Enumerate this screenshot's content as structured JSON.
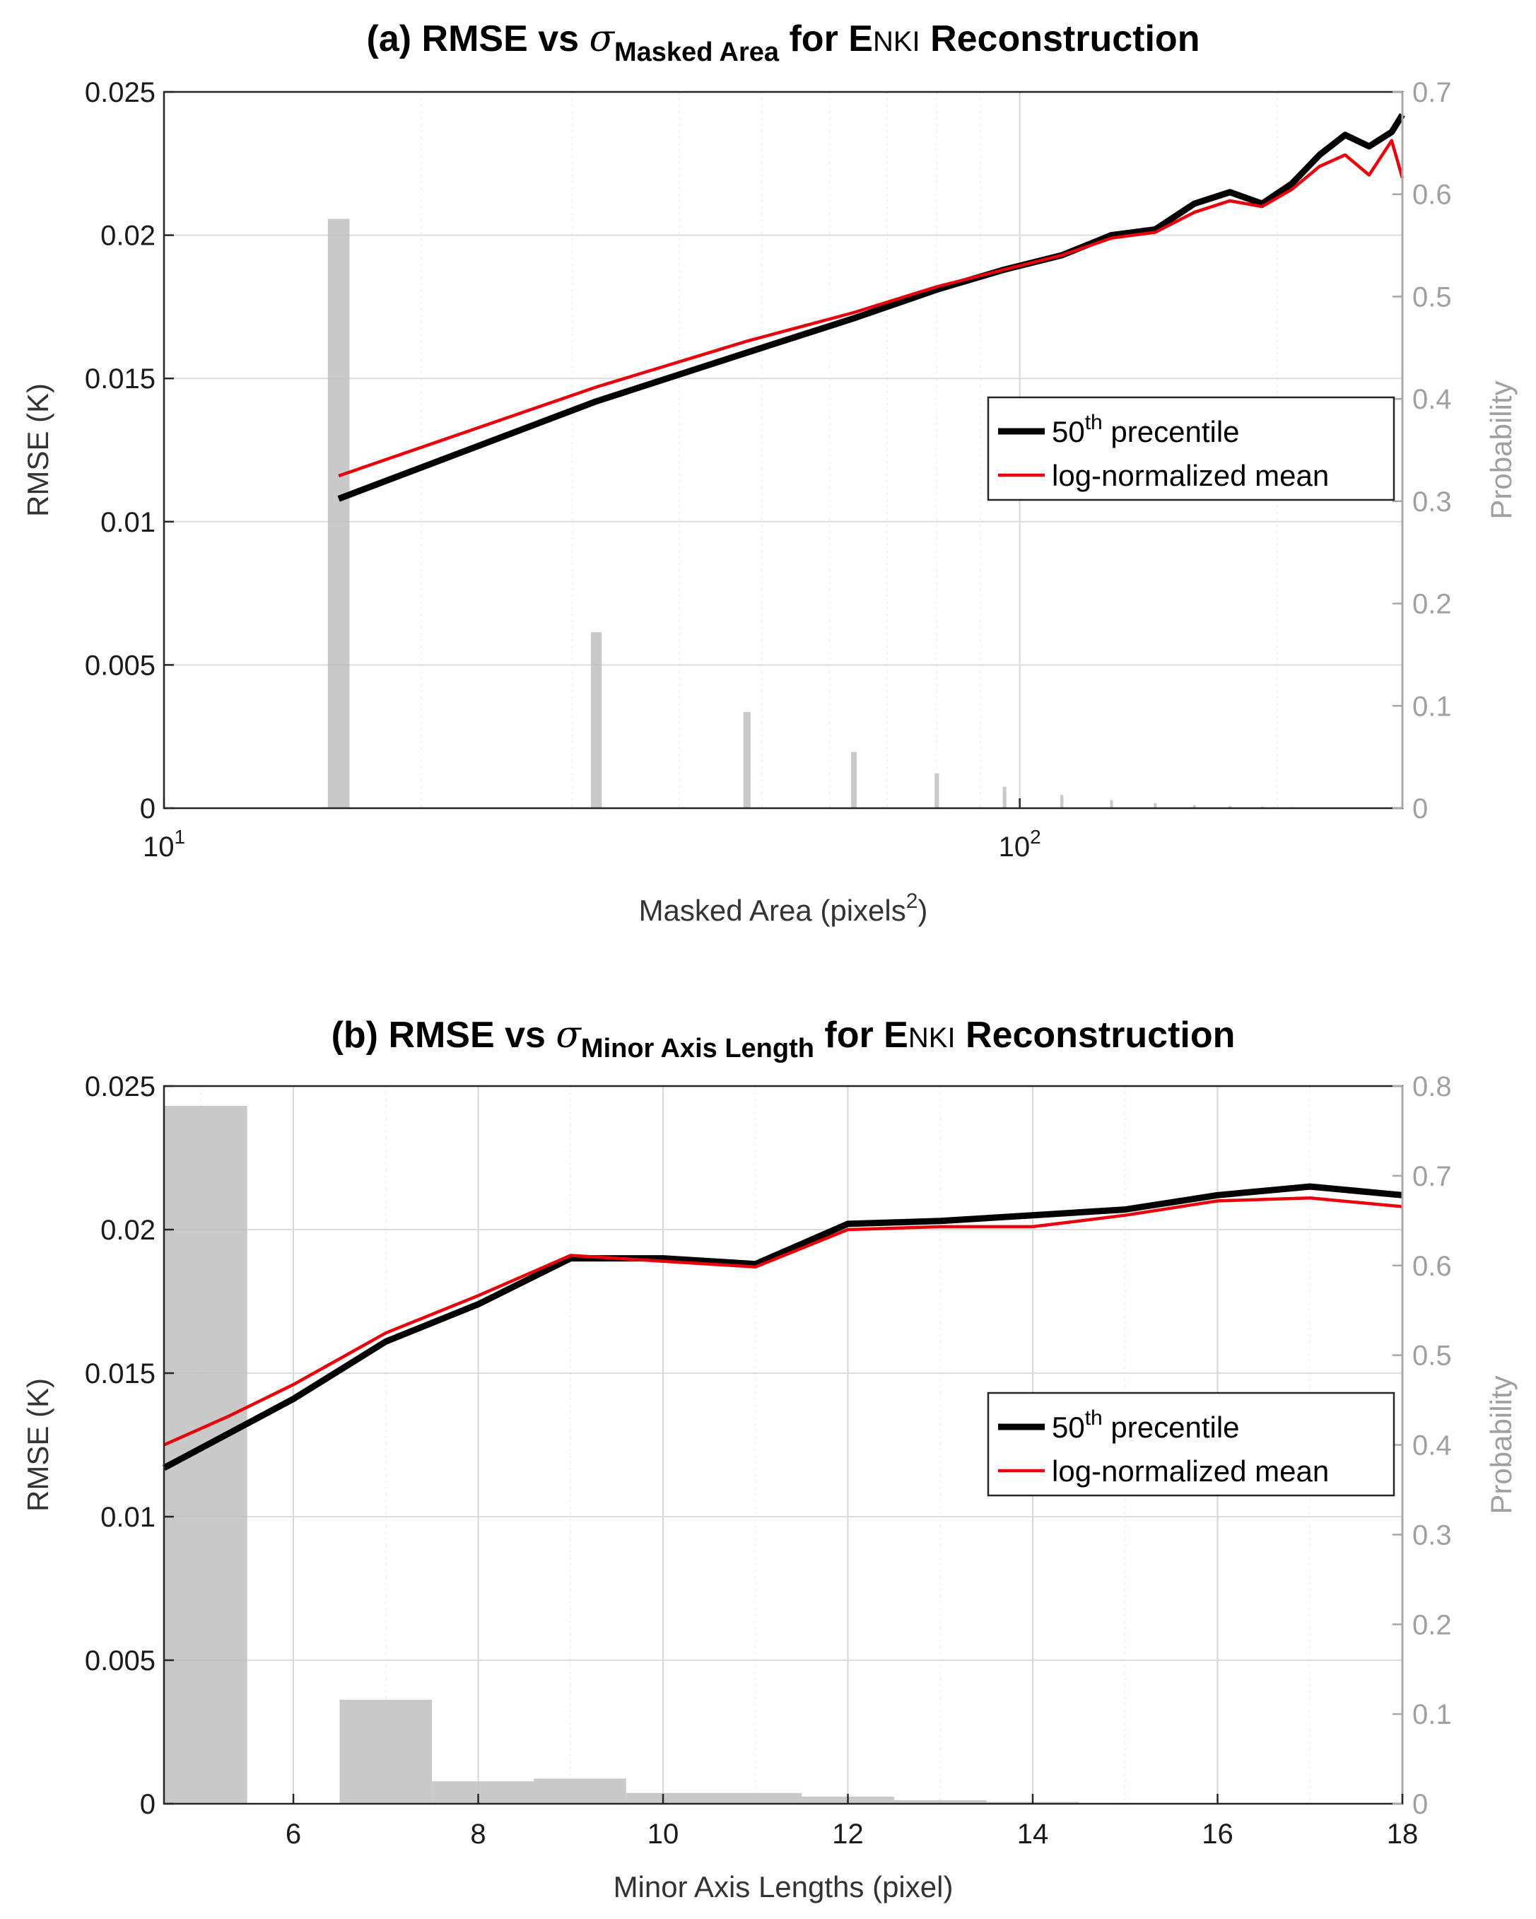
{
  "chart_data": [
    {
      "type": "line",
      "title": "(a) RMSE vs σ Masked Area for ENKI Reconstruction",
      "title_parts": {
        "prefix": "(a) RMSE vs ",
        "sigma": "σ",
        "subscript": "Masked Area",
        "mid": " for E",
        "small": "NKI",
        "suffix": "  Reconstruction"
      },
      "xscale": "log",
      "xlim": [
        10,
        280
      ],
      "xlabel": "Masked Area (pixels",
      "xlabel_sup": "2",
      "xlabel_close": ")",
      "xticks": [
        {
          "value": 10,
          "base": "10",
          "exp": "1"
        },
        {
          "value": 100,
          "base": "10",
          "exp": "2"
        }
      ],
      "ylabel": "RMSE (K)",
      "ylim": [
        0,
        0.025
      ],
      "yticks": [
        {
          "value": 0,
          "label": "0"
        },
        {
          "value": 0.005,
          "label": "0.005"
        },
        {
          "value": 0.01,
          "label": "0.01"
        },
        {
          "value": 0.015,
          "label": "0.015"
        },
        {
          "value": 0.02,
          "label": "0.02"
        },
        {
          "value": 0.025,
          "label": "0.025"
        }
      ],
      "y2label": "Probability",
      "y2lim": [
        0,
        0.7
      ],
      "y2ticks": [
        {
          "value": 0,
          "label": "0"
        },
        {
          "value": 0.1,
          "label": "0.1"
        },
        {
          "value": 0.2,
          "label": "0.2"
        },
        {
          "value": 0.3,
          "label": "0.3"
        },
        {
          "value": 0.4,
          "label": "0.4"
        },
        {
          "value": 0.5,
          "label": "0.5"
        },
        {
          "value": 0.6,
          "label": "0.6"
        },
        {
          "value": 0.7,
          "label": "0.7"
        }
      ],
      "grid": true,
      "legend_position": "center-right",
      "legend": [
        {
          "name": "50",
          "sup": "th",
          "rest": " precentile",
          "color": "#000000"
        },
        {
          "name": "log-normalized mean",
          "color": "#e8000b"
        }
      ],
      "series": [
        {
          "name": "50th precentile",
          "color": "#000000",
          "x": [
            16,
            32,
            48,
            64,
            80,
            96,
            112,
            128,
            144,
            160,
            176,
            192,
            208,
            224,
            240,
            256,
            272,
            280
          ],
          "y": [
            0.0108,
            0.0142,
            0.0159,
            0.0171,
            0.0181,
            0.0188,
            0.0193,
            0.02,
            0.0202,
            0.0211,
            0.0215,
            0.0211,
            0.0218,
            0.0228,
            0.0235,
            0.0231,
            0.0236,
            0.0242
          ]
        },
        {
          "name": "log-normalized mean",
          "color": "#e8000b",
          "x": [
            16,
            32,
            48,
            64,
            80,
            96,
            112,
            128,
            144,
            160,
            176,
            192,
            208,
            224,
            240,
            256,
            272,
            280
          ],
          "y": [
            0.0116,
            0.0147,
            0.0163,
            0.0173,
            0.0182,
            0.0188,
            0.0193,
            0.0199,
            0.0201,
            0.0208,
            0.0212,
            0.021,
            0.0216,
            0.0224,
            0.0228,
            0.0221,
            0.0233,
            0.022
          ]
        }
      ],
      "histogram": {
        "color": "#c0c0c0",
        "bars": [
          {
            "x": 16,
            "p": 0.576
          },
          {
            "x": 32,
            "p": 0.172
          },
          {
            "x": 48,
            "p": 0.094
          },
          {
            "x": 64,
            "p": 0.055
          },
          {
            "x": 80,
            "p": 0.034
          },
          {
            "x": 96,
            "p": 0.021
          },
          {
            "x": 112,
            "p": 0.013
          },
          {
            "x": 128,
            "p": 0.008
          },
          {
            "x": 144,
            "p": 0.005
          },
          {
            "x": 160,
            "p": 0.003
          },
          {
            "x": 176,
            "p": 0.002
          },
          {
            "x": 192,
            "p": 0.0015
          },
          {
            "x": 208,
            "p": 0.001
          }
        ]
      }
    },
    {
      "type": "line",
      "title": "(b) RMSE vs σ Minor Axis Length for ENKI Reconstruction",
      "title_parts": {
        "prefix": "(b) RMSE vs ",
        "sigma": "σ",
        "subscript": "Minor Axis Length",
        "mid": " for E",
        "small": "NKI",
        "suffix": "  Reconstruction"
      },
      "xscale": "linear",
      "xlim": [
        4.6,
        18
      ],
      "xlabel": "Minor Axis Lengths (pixel)",
      "xticks": [
        {
          "value": 6,
          "label": "6"
        },
        {
          "value": 8,
          "label": "8"
        },
        {
          "value": 10,
          "label": "10"
        },
        {
          "value": 12,
          "label": "12"
        },
        {
          "value": 14,
          "label": "14"
        },
        {
          "value": 16,
          "label": "16"
        },
        {
          "value": 18,
          "label": "18"
        }
      ],
      "ylabel": "RMSE (K)",
      "ylim": [
        0,
        0.025
      ],
      "yticks": [
        {
          "value": 0,
          "label": "0"
        },
        {
          "value": 0.005,
          "label": "0.005"
        },
        {
          "value": 0.01,
          "label": "0.01"
        },
        {
          "value": 0.015,
          "label": "0.015"
        },
        {
          "value": 0.02,
          "label": "0.02"
        },
        {
          "value": 0.025,
          "label": "0.025"
        }
      ],
      "y2label": "Probability",
      "y2lim": [
        0,
        0.8
      ],
      "y2ticks": [
        {
          "value": 0,
          "label": "0"
        },
        {
          "value": 0.1,
          "label": "0.1"
        },
        {
          "value": 0.2,
          "label": "0.2"
        },
        {
          "value": 0.3,
          "label": "0.3"
        },
        {
          "value": 0.4,
          "label": "0.4"
        },
        {
          "value": 0.5,
          "label": "0.5"
        },
        {
          "value": 0.6,
          "label": "0.6"
        },
        {
          "value": 0.7,
          "label": "0.7"
        },
        {
          "value": 0.8,
          "label": "0.8"
        }
      ],
      "grid": true,
      "legend_position": "center-right",
      "legend": [
        {
          "name": "50",
          "sup": "th",
          "rest": " precentile",
          "color": "#000000"
        },
        {
          "name": "log-normalized mean",
          "color": "#e8000b"
        }
      ],
      "series": [
        {
          "name": "50th precentile",
          "color": "#000000",
          "x": [
            4.6,
            5.3,
            6,
            7,
            8,
            9,
            10,
            11,
            12,
            13,
            14,
            15,
            16,
            17,
            18
          ],
          "y": [
            0.0117,
            0.0129,
            0.0141,
            0.0161,
            0.0174,
            0.019,
            0.019,
            0.0188,
            0.0202,
            0.0203,
            0.0205,
            0.0207,
            0.0212,
            0.0215,
            0.0212
          ]
        },
        {
          "name": "log-normalized mean",
          "color": "#e8000b",
          "x": [
            4.6,
            5.3,
            6,
            7,
            8,
            9,
            10,
            11,
            12,
            13,
            14,
            15,
            16,
            17,
            18
          ],
          "y": [
            0.0125,
            0.0135,
            0.0146,
            0.0164,
            0.0177,
            0.0191,
            0.0189,
            0.0187,
            0.02,
            0.0201,
            0.0201,
            0.0205,
            0.021,
            0.0211,
            0.0208
          ]
        }
      ],
      "histogram": {
        "color": "#c0c0c0",
        "bars": [
          {
            "x0": 4.6,
            "x1": 5.5,
            "p": 0.778
          },
          {
            "x0": 6.5,
            "x1": 7.5,
            "p": 0.116
          },
          {
            "x0": 7.5,
            "x1": 8.6,
            "p": 0.025
          },
          {
            "x0": 8.6,
            "x1": 9.6,
            "p": 0.028
          },
          {
            "x0": 9.6,
            "x1": 11.5,
            "p": 0.012
          },
          {
            "x0": 11.5,
            "x1": 12.5,
            "p": 0.008
          },
          {
            "x0": 12.5,
            "x1": 13.5,
            "p": 0.004
          },
          {
            "x0": 13.5,
            "x1": 14.5,
            "p": 0.002
          },
          {
            "x0": 14.5,
            "x1": 18,
            "p": 0.001
          }
        ]
      }
    }
  ]
}
